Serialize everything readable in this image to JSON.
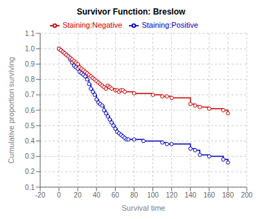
{
  "chart_data": {
    "type": "line",
    "title": "Survivor Function: Breslow",
    "xlabel": "Survival time",
    "ylabel": "Cumulative proportion surviving",
    "xlim": [
      -20,
      200
    ],
    "ylim": [
      0.1,
      1.1
    ],
    "xticks": [
      -20,
      0,
      20,
      40,
      60,
      80,
      100,
      120,
      140,
      160,
      180,
      200
    ],
    "yticks": [
      0.1,
      0.2,
      0.3,
      0.4,
      0.5,
      0.6,
      0.7,
      0.8,
      0.9,
      {
        "value": 1.0,
        "label": "1.0"
      },
      1.1
    ],
    "grid": true,
    "legend": "top",
    "line_style": "step",
    "marker": "o",
    "series": [
      {
        "name": "Staining:Positive",
        "color": "#0000bb",
        "x": [
          0,
          2,
          4,
          6,
          8,
          10,
          12,
          14,
          16,
          18,
          20,
          22,
          24,
          26,
          28,
          30,
          32,
          34,
          36,
          38,
          40,
          42,
          44,
          46,
          48,
          50,
          52,
          54,
          56,
          58,
          60,
          62,
          64,
          66,
          68,
          70,
          72,
          74,
          80,
          90,
          110,
          115,
          120,
          140,
          145,
          150,
          160,
          175,
          180
        ],
        "values": [
          1.0,
          0.99,
          0.98,
          0.97,
          0.96,
          0.95,
          0.93,
          0.91,
          0.89,
          0.88,
          0.87,
          0.85,
          0.84,
          0.83,
          0.82,
          0.8,
          0.77,
          0.74,
          0.72,
          0.7,
          0.67,
          0.65,
          0.64,
          0.63,
          0.6,
          0.58,
          0.56,
          0.54,
          0.52,
          0.5,
          0.48,
          0.46,
          0.45,
          0.44,
          0.43,
          0.42,
          0.41,
          0.41,
          0.41,
          0.4,
          0.39,
          0.38,
          0.38,
          0.35,
          0.34,
          0.31,
          0.3,
          0.28,
          0.26
        ]
      },
      {
        "name": "Staining:Negative",
        "color": "#cc0000",
        "x": [
          0,
          2,
          4,
          6,
          8,
          10,
          12,
          14,
          16,
          18,
          20,
          22,
          24,
          26,
          28,
          30,
          32,
          34,
          36,
          38,
          40,
          42,
          44,
          46,
          48,
          50,
          52,
          54,
          56,
          60,
          62,
          64,
          66,
          68,
          70,
          80,
          100,
          110,
          115,
          120,
          140,
          145,
          150,
          160,
          175,
          180
        ],
        "values": [
          1.0,
          0.99,
          0.98,
          0.97,
          0.96,
          0.95,
          0.94,
          0.93,
          0.92,
          0.91,
          0.9,
          0.88,
          0.87,
          0.86,
          0.85,
          0.84,
          0.83,
          0.82,
          0.81,
          0.8,
          0.79,
          0.78,
          0.77,
          0.76,
          0.75,
          0.74,
          0.76,
          0.75,
          0.74,
          0.73,
          0.73,
          0.72,
          0.73,
          0.73,
          0.72,
          0.71,
          0.7,
          0.69,
          0.69,
          0.68,
          0.64,
          0.63,
          0.62,
          0.61,
          0.6,
          0.58
        ]
      }
    ]
  }
}
